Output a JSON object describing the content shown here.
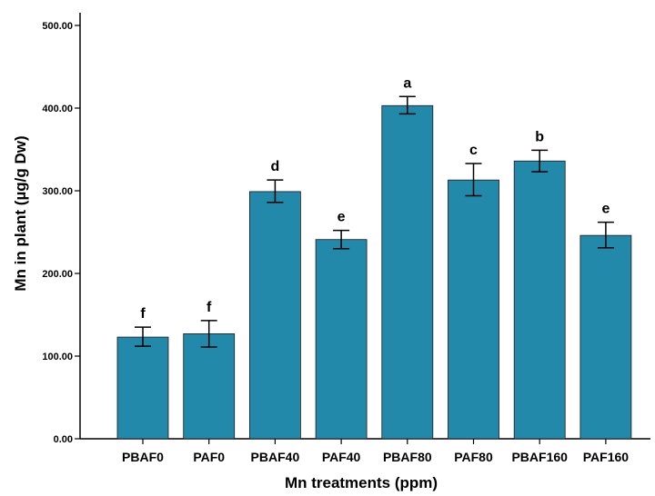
{
  "chart_data": {
    "type": "bar",
    "categories": [
      "PBAF0",
      "PAF0",
      "PBAF40",
      "PAF40",
      "PBAF80",
      "PAF80",
      "PBAF160",
      "PAF160"
    ],
    "values": [
      123,
      127,
      299,
      241,
      403,
      313,
      336,
      246
    ],
    "error_low": [
      112,
      111,
      286,
      230,
      393,
      294,
      323,
      231
    ],
    "error_high": [
      135,
      143,
      313,
      252,
      414,
      333,
      349,
      262
    ],
    "significance": [
      "f",
      "f",
      "d",
      "e",
      "a",
      "c",
      "b",
      "e"
    ],
    "xlabel": "Mn treatments (ppm)",
    "ylabel": "Mn in plant (µg/g Dw)",
    "ylim": [
      0,
      500
    ],
    "yticks": [
      "0.00",
      "100.00",
      "200.00",
      "300.00",
      "400.00",
      "500.00"
    ],
    "bar_color": "#2389AA",
    "grid": false
  }
}
